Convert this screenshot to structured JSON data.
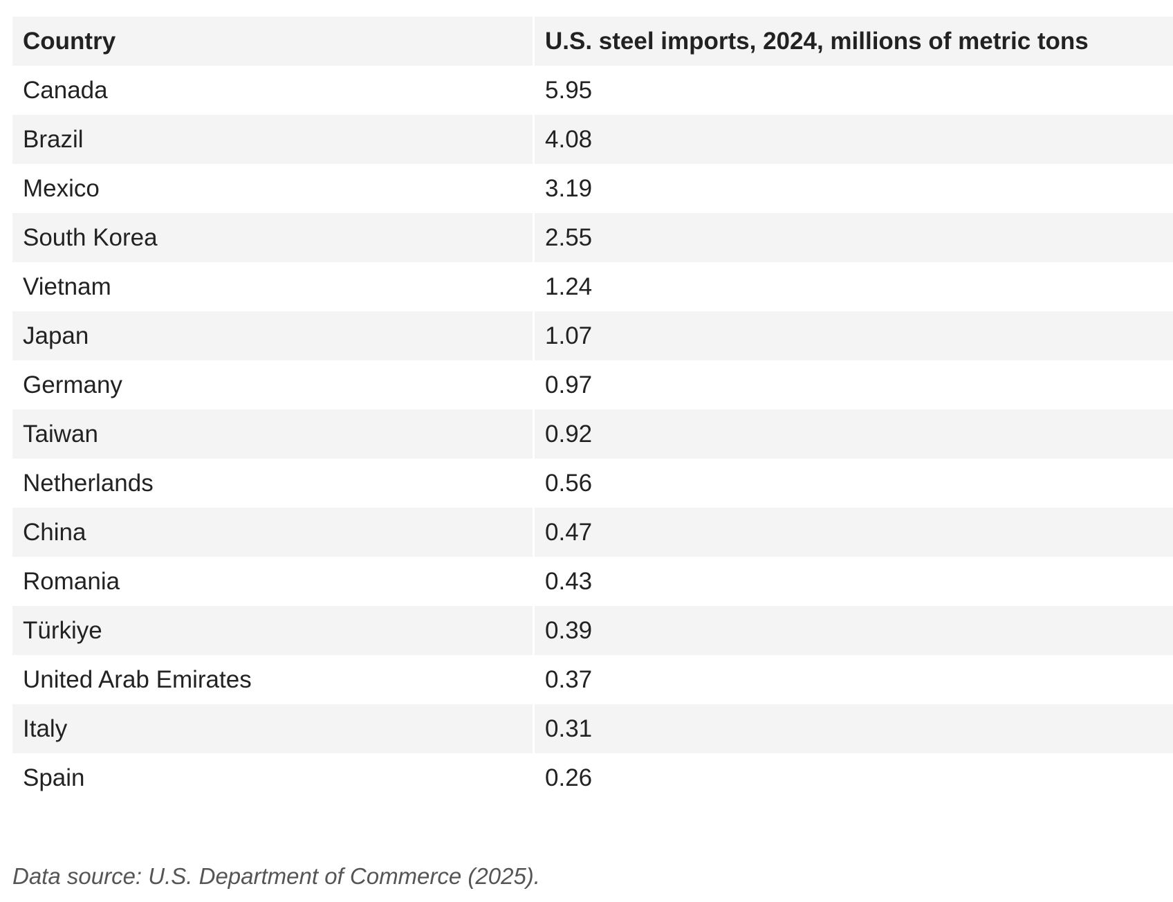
{
  "chart_data": {
    "type": "table",
    "columns": [
      "Country",
      "U.S. steel imports, 2024, millions of metric tons"
    ],
    "rows": [
      {
        "country": "Canada",
        "value": "5.95"
      },
      {
        "country": "Brazil",
        "value": "4.08"
      },
      {
        "country": "Mexico",
        "value": "3.19"
      },
      {
        "country": "South Korea",
        "value": "2.55"
      },
      {
        "country": "Vietnam",
        "value": "1.24"
      },
      {
        "country": "Japan",
        "value": "1.07"
      },
      {
        "country": "Germany",
        "value": "0.97"
      },
      {
        "country": "Taiwan",
        "value": "0.92"
      },
      {
        "country": "Netherlands",
        "value": "0.56"
      },
      {
        "country": "China",
        "value": "0.47"
      },
      {
        "country": "Romania",
        "value": "0.43"
      },
      {
        "country": "Türkiye",
        "value": "0.39"
      },
      {
        "country": "United Arab Emirates",
        "value": "0.37"
      },
      {
        "country": "Italy",
        "value": "0.31"
      },
      {
        "country": "Spain",
        "value": "0.26"
      }
    ]
  },
  "footer": {
    "source": "Data source: U.S. Department of Commerce (2025)."
  }
}
